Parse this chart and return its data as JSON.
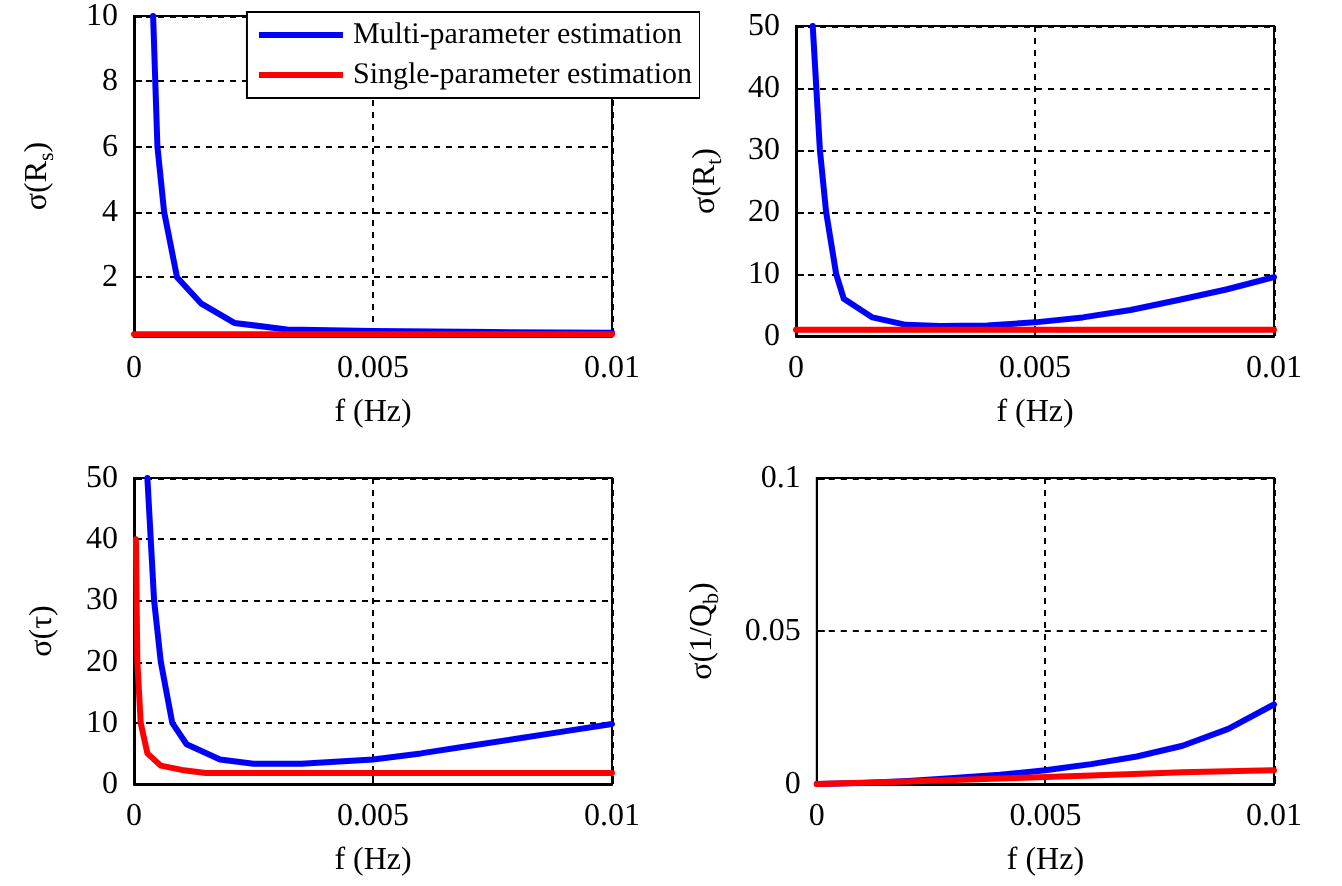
{
  "chart_data": [
    {
      "type": "line",
      "xlabel": "f (Hz)",
      "ylabel": "σ(R$_{s}$)",
      "xlim": [
        0,
        0.01
      ],
      "ylim": [
        0.2,
        10
      ],
      "xticks": [
        0,
        0.005,
        0.01
      ],
      "yticks": [
        2,
        4,
        6,
        8,
        10
      ],
      "grid": true,
      "legend": "top right",
      "line_style": "solid",
      "series": [
        {
          "name": "Multi-parameter estimation",
          "color": "#0000ff",
          "x": [
            0.0004,
            0.00049,
            0.00063,
            0.0009,
            0.0014,
            0.0021,
            0.0032,
            0.005,
            0.0075,
            0.01
          ],
          "values": [
            10,
            6,
            4,
            2,
            1.2,
            0.6,
            0.4,
            0.35,
            0.32,
            0.3
          ]
        },
        {
          "name": "Single-parameter estimation",
          "color": "#ff0000",
          "x": [
            0,
            0.005,
            0.01
          ],
          "values": [
            0.25,
            0.25,
            0.25
          ]
        }
      ]
    },
    {
      "type": "line",
      "xlabel": "f (Hz)",
      "ylabel": "σ(R$_{t}$)",
      "xlim": [
        0,
        0.01
      ],
      "ylim": [
        0,
        50
      ],
      "xticks": [
        0,
        0.005,
        0.01
      ],
      "yticks": [
        0,
        10,
        20,
        30,
        40,
        50
      ],
      "grid": true,
      "line_style": "solid",
      "series": [
        {
          "color": "#0000ff",
          "x": [
            0.00035,
            0.0005,
            0.00063,
            0.00084,
            0.001,
            0.0016,
            0.0023,
            0.003,
            0.004,
            0.005,
            0.006,
            0.007,
            0.008,
            0.009,
            0.01
          ],
          "values": [
            50,
            30,
            20,
            10,
            6,
            3,
            1.8,
            1.6,
            1.7,
            2.2,
            3,
            4.2,
            5.8,
            7.5,
            9.5
          ]
        },
        {
          "color": "#ff0000",
          "x": [
            0,
            0.005,
            0.01
          ],
          "values": [
            1,
            1,
            1
          ]
        }
      ]
    },
    {
      "type": "line",
      "xlabel": "f (Hz)",
      "ylabel": "σ(τ)",
      "xlim": [
        0,
        0.01
      ],
      "ylim": [
        0,
        50
      ],
      "xticks": [
        0,
        0.005,
        0.01
      ],
      "yticks": [
        0,
        10,
        20,
        30,
        40,
        50
      ],
      "grid": true,
      "line_style": "solid",
      "series": [
        {
          "color": "#0000ff",
          "x": [
            0.00028,
            0.00042,
            0.00056,
            0.0008,
            0.0011,
            0.0018,
            0.0025,
            0.0035,
            0.005,
            0.006,
            0.007,
            0.008,
            0.009,
            0.01
          ],
          "values": [
            50,
            30,
            20,
            10,
            6.5,
            4,
            3.3,
            3.3,
            4,
            5,
            6.2,
            7.4,
            8.6,
            9.8
          ]
        },
        {
          "color": "#ff0000",
          "x": [
            4e-05,
            7e-05,
            0.00014,
            0.00028,
            0.00056,
            0.001,
            0.0015,
            0.005,
            0.01
          ],
          "values": [
            40,
            20,
            10,
            5,
            3,
            2.3,
            1.8,
            1.8,
            1.8
          ]
        }
      ]
    },
    {
      "type": "line",
      "xlabel": "f (Hz)",
      "ylabel": "σ(1/Q$_{b}$)",
      "xlim": [
        0,
        0.01
      ],
      "ylim": [
        0,
        0.1
      ],
      "xticks": [
        0,
        0.005,
        0.01
      ],
      "yticks": [
        0,
        0.05,
        0.1
      ],
      "grid": true,
      "line_style": "solid",
      "series": [
        {
          "color": "#0000ff",
          "x": [
            0,
            0.001,
            0.002,
            0.003,
            0.004,
            0.005,
            0.006,
            0.007,
            0.008,
            0.009,
            0.01
          ],
          "values": [
            0,
            0.0003,
            0.001,
            0.002,
            0.003,
            0.0045,
            0.0065,
            0.009,
            0.0125,
            0.018,
            0.026
          ]
        },
        {
          "color": "#ff0000",
          "x": [
            0,
            0.002,
            0.004,
            0.006,
            0.008,
            0.01
          ],
          "values": [
            0,
            0.0008,
            0.0018,
            0.0028,
            0.0038,
            0.0045
          ]
        }
      ]
    }
  ]
}
